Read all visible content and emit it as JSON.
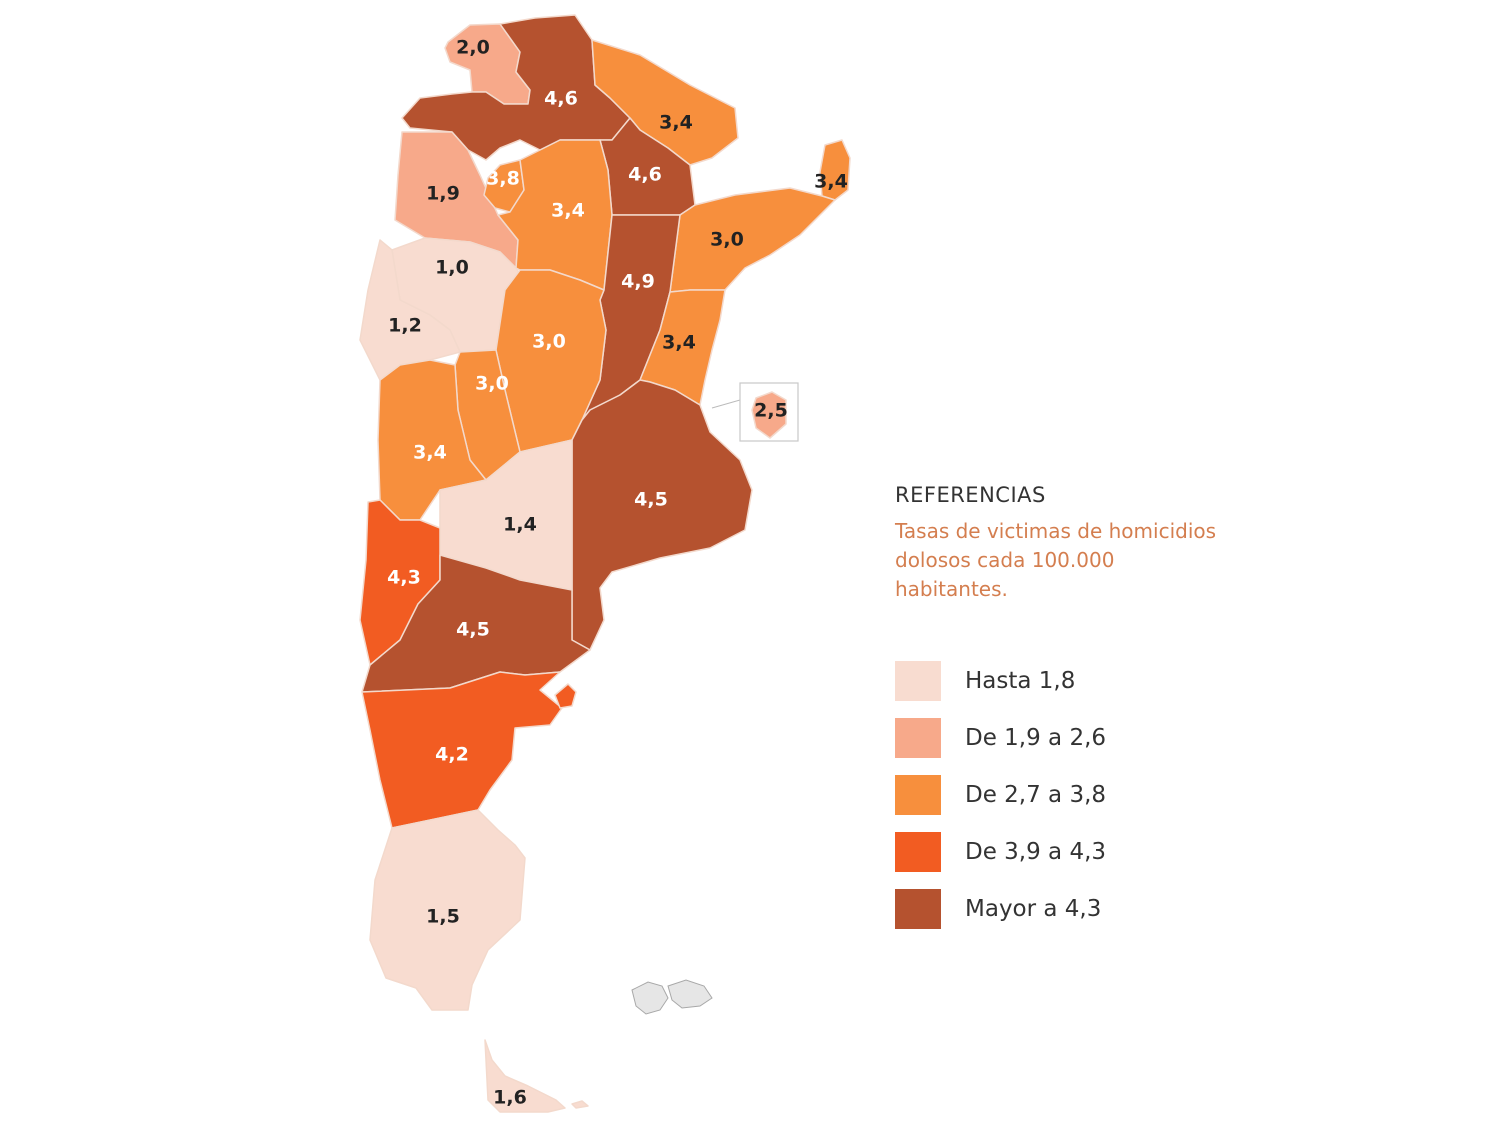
{
  "legend": {
    "title": "REFERENCIAS",
    "subtitle": "Tasas de victimas de homicidios dolosos cada 100.000 habitantes.",
    "classes": [
      {
        "label": "Hasta 1,8",
        "color": "#f8dcd0"
      },
      {
        "label": "De 1,9 a 2,6",
        "color": "#f7a98a"
      },
      {
        "label": "De 2,7 a 3,8",
        "color": "#f78f3d"
      },
      {
        "label": "De 3,9 a 4,3",
        "color": "#f25c22"
      },
      {
        "label": "Mayor a 4,3",
        "color": "#b5522f"
      }
    ]
  },
  "provinces": [
    {
      "id": "jujuy",
      "value": "2,0",
      "class": 1
    },
    {
      "id": "salta",
      "value": "4,6",
      "class": 4
    },
    {
      "id": "formosa",
      "value": "3,4",
      "class": 2
    },
    {
      "id": "chaco",
      "value": "4,6",
      "class": 4
    },
    {
      "id": "misiones",
      "value": "3,4",
      "class": 2
    },
    {
      "id": "catamarca",
      "value": "1,9",
      "class": 1
    },
    {
      "id": "tucuman",
      "value": "3,8",
      "class": 2
    },
    {
      "id": "santiago-del-estero",
      "value": "3,4",
      "class": 2
    },
    {
      "id": "corrientes",
      "value": "3,0",
      "class": 2
    },
    {
      "id": "la-rioja",
      "value": "1,0",
      "class": 0
    },
    {
      "id": "santa-fe",
      "value": "4,9",
      "class": 4
    },
    {
      "id": "san-juan",
      "value": "1,2",
      "class": 0
    },
    {
      "id": "cordoba",
      "value": "3,0",
      "class": 2
    },
    {
      "id": "entre-rios",
      "value": "3,4",
      "class": 2
    },
    {
      "id": "san-luis",
      "value": "3,0",
      "class": 2
    },
    {
      "id": "caba",
      "value": "2,5",
      "class": 1
    },
    {
      "id": "mendoza",
      "value": "3,4",
      "class": 2
    },
    {
      "id": "buenos-aires",
      "value": "4,5",
      "class": 4
    },
    {
      "id": "la-pampa",
      "value": "1,4",
      "class": 0
    },
    {
      "id": "neuquen",
      "value": "4,3",
      "class": 3
    },
    {
      "id": "rio-negro",
      "value": "4,5",
      "class": 4
    },
    {
      "id": "chubut",
      "value": "4,2",
      "class": 3
    },
    {
      "id": "santa-cruz",
      "value": "1,5",
      "class": 0
    },
    {
      "id": "tierra-del-fuego",
      "value": "1,6",
      "class": 0
    }
  ]
}
